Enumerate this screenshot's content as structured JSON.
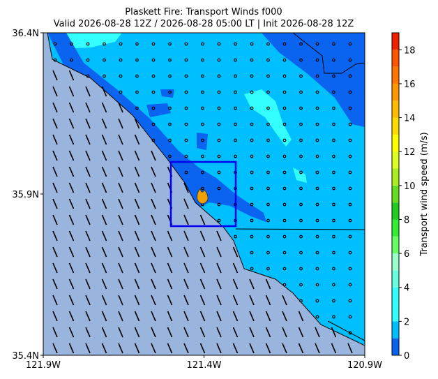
{
  "chart_data": {
    "type": "map",
    "title": "Plaskett Fire: Transport Winds f000",
    "subtitle": "Valid 2026-08-28 12Z / 2026-08-28 05:00 LT | Init 2026-08-28 12Z",
    "xlim": [
      -121.9,
      -120.9
    ],
    "xticks": [
      {
        "value": -121.9,
        "label": "121.9W"
      },
      {
        "value": -121.4,
        "label": "121.4W"
      },
      {
        "value": -120.9,
        "label": "120.9W"
      }
    ],
    "ylim": [
      35.4,
      36.4
    ],
    "yticks": [
      {
        "value": 35.4,
        "label": "35.4N"
      },
      {
        "value": 35.9,
        "label": "35.9N"
      },
      {
        "value": 36.4,
        "label": "36.4N"
      }
    ],
    "colorbar": {
      "label": "Transport wind speed (m/s)",
      "lim": [
        0,
        19
      ],
      "ticks": [
        0,
        2,
        4,
        6,
        8,
        10,
        12,
        14,
        16,
        18
      ],
      "colors": [
        "#0a64f0",
        "#00bfff",
        "#33ffff",
        "#33ffff",
        "#66ffe0",
        "#99ffcc",
        "#66ff66",
        "#33ee33",
        "#22cc22",
        "#66dd22",
        "#aaee22",
        "#ddff22",
        "#ffff00",
        "#ffdd00",
        "#ffbb00",
        "#ff9900",
        "#ff7700",
        "#ff5500",
        "#ee2200"
      ]
    }
  }
}
